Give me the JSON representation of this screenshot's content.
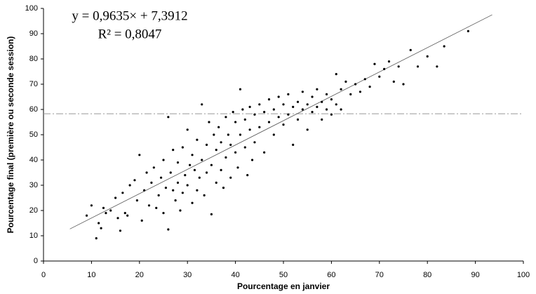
{
  "chart_data": {
    "type": "scatter",
    "x_label": "Pourcentage en janvier",
    "y_label": "Pourcentage final (première ou seconde session)",
    "annotations": [
      "y = 0,9635× + 7,3912",
      "R² = 0,8047"
    ],
    "trendline": {
      "slope": 0.9635,
      "intercept": 7.3912,
      "x": [
        5.5,
        93.5
      ]
    },
    "reference_line": {
      "y": 58.3
    },
    "color": "#000000",
    "xlim": [
      0,
      100
    ],
    "xticks": [
      0,
      10,
      20,
      30,
      40,
      50,
      60,
      70,
      80,
      90,
      100
    ],
    "ylim": [
      0,
      100
    ],
    "yticks": [
      0,
      10,
      20,
      30,
      40,
      50,
      60,
      70,
      80,
      90,
      100
    ],
    "x": [
      9,
      10,
      11,
      11.5,
      12,
      12.5,
      13,
      14,
      15,
      15.5,
      16,
      16.5,
      17,
      17.5,
      18,
      19,
      19.5,
      20,
      20.5,
      21,
      21.5,
      22,
      22.5,
      23,
      23.5,
      24,
      24.5,
      25,
      25,
      25.5,
      26,
      26,
      26.5,
      27,
      27,
      27.5,
      28,
      28,
      28.5,
      29,
      29,
      29.5,
      30,
      30,
      30.5,
      31,
      31,
      31.5,
      32,
      32,
      32.5,
      33,
      33,
      33.5,
      34,
      34,
      34.5,
      35,
      35,
      35.5,
      36,
      36,
      36.5,
      37,
      37,
      37.5,
      38,
      38,
      38.5,
      39,
      39,
      39.5,
      40,
      40,
      40.5,
      41,
      41,
      41.5,
      42,
      42,
      42.5,
      43,
      43,
      43.5,
      44,
      44,
      45,
      45,
      46,
      46,
      47,
      47,
      48,
      48,
      49,
      49,
      50,
      50,
      51,
      51,
      52,
      52,
      53,
      53,
      54,
      54,
      55,
      55,
      56,
      56,
      57,
      57,
      58,
      58,
      59,
      59,
      60,
      60,
      61,
      61,
      62,
      62,
      63,
      64,
      65,
      66,
      67,
      68,
      69,
      70,
      71,
      72,
      73,
      74,
      75,
      76.5,
      78,
      80,
      82,
      83.5,
      88.5
    ],
    "values": [
      18,
      22,
      9,
      15,
      13,
      21,
      19,
      20,
      25,
      17,
      12,
      27,
      19,
      18,
      30,
      32,
      24,
      42,
      16,
      28,
      35,
      22,
      31,
      37,
      21,
      26,
      33,
      40,
      19,
      29,
      57,
      12.5,
      35,
      28,
      44,
      24,
      31,
      39,
      20,
      45,
      27,
      34,
      52,
      30,
      38,
      23,
      42,
      36,
      48,
      28,
      33,
      62,
      40,
      26,
      46,
      35,
      55,
      18.5,
      38,
      50,
      31,
      44,
      53,
      36,
      47,
      29,
      57,
      41,
      50,
      33,
      46,
      59,
      43,
      55,
      37,
      68,
      50,
      60,
      45,
      56,
      34,
      61,
      52,
      40,
      58,
      47,
      62,
      53,
      43,
      59,
      64,
      55,
      60,
      50,
      65,
      57,
      62,
      54,
      66,
      58,
      61,
      46,
      63,
      56,
      67,
      60,
      62,
      52,
      65,
      59,
      68,
      61,
      63,
      56,
      66,
      60,
      64,
      58,
      74,
      62,
      68,
      60,
      71,
      66,
      70,
      67,
      72,
      69,
      78,
      73,
      76,
      79,
      71,
      77,
      70,
      83.5,
      77,
      81,
      77,
      85,
      91
    ]
  }
}
